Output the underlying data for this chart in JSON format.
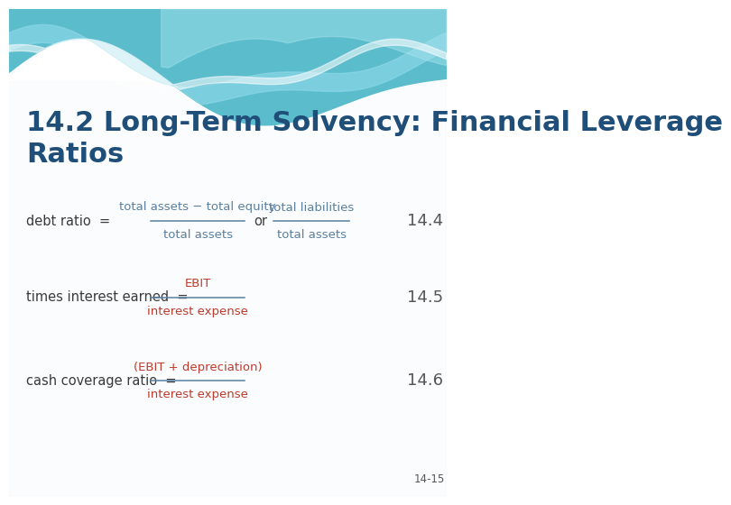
{
  "title": "14.2 Long-Term Solvency: Financial Leverage\nRatios",
  "title_color": "#1f4e79",
  "title_fontsize": 22,
  "slide_bg": "#ffffff",
  "formula_label_color": "#5a7fa0",
  "formula_red_color": "#c0392b",
  "formula_number_color": "#555555",
  "page_number": "14-15",
  "formulas": [
    {
      "label": "debt ratio  =",
      "numerator1": "total assets − total equity",
      "denominator1": "total assets",
      "connector": "or",
      "numerator2": "total liabilities",
      "denominator2": "total assets",
      "number": "14.4",
      "red_part": null
    },
    {
      "label": "times interest earned  =",
      "numerator1": "EBIT",
      "denominator1": "interest expense",
      "connector": null,
      "numerator2": null,
      "denominator2": null,
      "number": "14.5",
      "red_part": "EBIT"
    },
    {
      "label": "cash coverage ratio  =",
      "numerator1": "(EBIT + depreciation)",
      "denominator1": "interest expense",
      "connector": null,
      "numerator2": null,
      "denominator2": null,
      "number": "14.6",
      "red_part": "(EBIT + depreciation)"
    }
  ]
}
